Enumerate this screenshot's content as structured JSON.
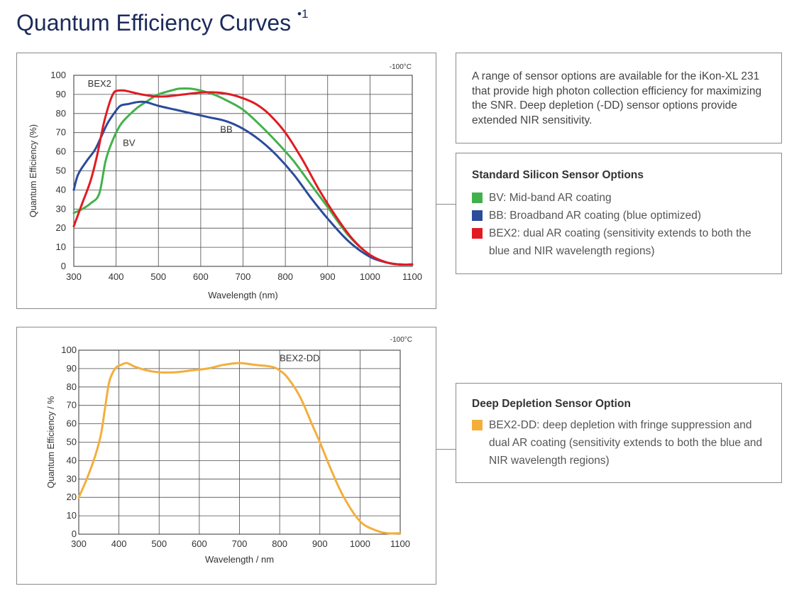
{
  "page": {
    "title": "Quantum Efficiency Curves",
    "title_marker": "•1"
  },
  "colors": {
    "title": "#1c2b5c",
    "bv": "#43b14b",
    "bb": "#2b4b9b",
    "bex2": "#e01b22",
    "bex2dd": "#f4ae3c"
  },
  "desc": "A range of sensor options are available for the iKon-XL 231 that provide high photon collection efficiency for maximizing the SNR. Deep depletion (-DD) sensor options provide extended NIR sensitivity.",
  "standard": {
    "title": "Standard Silicon Sensor Options",
    "options": [
      {
        "code": "BV:",
        "text": " Mid-band AR coating"
      },
      {
        "code": "BB:",
        "text": " Broadband AR coating (blue optimized)"
      },
      {
        "code": "BEX2:",
        "text": " dual AR coating (sensitivity extends to both the blue and NIR wavelength regions)"
      }
    ]
  },
  "deep": {
    "title": "Deep Depletion Sensor Option",
    "options": [
      {
        "code": "BEX2-DD:",
        "text": " deep depletion with fringe suppression and dual AR coating (sensitivity extends to both the blue and NIR wavelength regions)"
      }
    ]
  },
  "chart_data": [
    {
      "type": "line",
      "temp_label": "-100°C",
      "xlabel": "Wavelength (nm)",
      "ylabel": "Quantum Efficiency (%)",
      "xlim": [
        300,
        1100
      ],
      "ylim": [
        0,
        100
      ],
      "x_ticks": [
        300,
        400,
        500,
        600,
        700,
        800,
        900,
        1000,
        1100
      ],
      "y_ticks": [
        0,
        10,
        20,
        30,
        40,
        50,
        60,
        70,
        80,
        90,
        100
      ],
      "grid": true,
      "series": [
        {
          "name": "BV",
          "label": "BV",
          "color": "#43b14b",
          "x": [
            300,
            320,
            340,
            360,
            375,
            390,
            410,
            430,
            450,
            470,
            500,
            530,
            550,
            575,
            600,
            630,
            660,
            700,
            740,
            780,
            820,
            860,
            900,
            950,
            1000,
            1040,
            1070,
            1100
          ],
          "y": [
            28,
            30,
            33,
            38,
            55,
            65,
            74,
            79,
            83,
            86,
            90,
            92,
            93,
            93,
            92,
            90,
            87,
            82,
            74,
            65,
            55,
            43,
            31,
            16,
            6,
            2,
            1,
            1
          ]
        },
        {
          "name": "BB",
          "label": "BB",
          "color": "#2b4b9b",
          "x": [
            300,
            310,
            330,
            350,
            365,
            380,
            395,
            410,
            430,
            450,
            470,
            500,
            540,
            580,
            620,
            660,
            700,
            740,
            780,
            820,
            860,
            900,
            950,
            1000,
            1040,
            1070,
            1100
          ],
          "y": [
            40,
            48,
            55,
            61,
            68,
            75,
            80,
            84,
            85,
            86,
            86,
            84,
            82,
            80,
            78,
            76,
            72,
            66,
            58,
            48,
            36,
            25,
            13,
            5,
            2,
            1,
            1
          ]
        },
        {
          "name": "BEX2",
          "label": "BEX2",
          "color": "#e01b22",
          "x": [
            300,
            320,
            340,
            355,
            370,
            385,
            395,
            405,
            420,
            440,
            460,
            490,
            520,
            560,
            600,
            640,
            670,
            700,
            730,
            760,
            800,
            840,
            880,
            920,
            960,
            1000,
            1040,
            1070,
            1100
          ],
          "y": [
            21,
            33,
            45,
            58,
            74,
            86,
            91,
            92,
            92,
            91,
            90,
            89,
            89,
            90,
            91,
            91,
            90,
            88,
            85,
            80,
            70,
            56,
            40,
            26,
            14,
            6,
            2,
            1,
            1
          ]
        }
      ],
      "curve_labels": [
        {
          "text": "BEX2",
          "x": 333,
          "y": 94
        },
        {
          "text": "BV",
          "x": 416,
          "y": 63
        },
        {
          "text": "BB",
          "x": 646,
          "y": 70
        }
      ]
    },
    {
      "type": "line",
      "temp_label": "-100°C",
      "xlabel": "Wavelength / nm",
      "ylabel": "Quantum Efficiency / %",
      "xlim": [
        300,
        1100
      ],
      "ylim": [
        0,
        100
      ],
      "x_ticks": [
        300,
        400,
        500,
        600,
        700,
        800,
        900,
        1000,
        1100
      ],
      "y_ticks": [
        0,
        10,
        20,
        30,
        40,
        50,
        60,
        70,
        80,
        90,
        100
      ],
      "grid": true,
      "series": [
        {
          "name": "BEX2-DD",
          "label": "BEX2-DD",
          "color": "#f4ae3c",
          "x": [
            300,
            320,
            340,
            355,
            365,
            375,
            385,
            395,
            405,
            420,
            440,
            470,
            500,
            540,
            580,
            620,
            660,
            700,
            740,
            780,
            800,
            820,
            850,
            880,
            900,
            930,
            960,
            1000,
            1040,
            1070,
            1100
          ],
          "y": [
            20,
            30,
            42,
            54,
            68,
            82,
            88,
            91,
            92,
            93,
            91,
            89,
            88,
            88,
            89,
            90,
            92,
            93,
            92,
            91,
            89,
            85,
            75,
            60,
            50,
            34,
            20,
            7,
            2,
            0.5,
            0.5
          ]
        }
      ],
      "curve_labels": [
        {
          "text": "BEX2-DD",
          "x": 800,
          "y": 94
        }
      ]
    }
  ]
}
